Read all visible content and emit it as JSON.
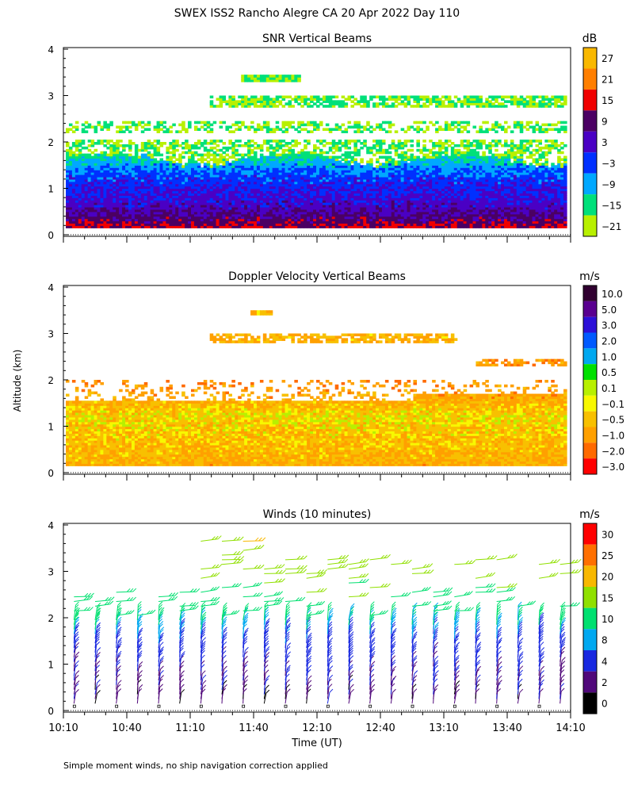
{
  "title": "SWEX ISS2 Rancho Alegre CA  20 Apr 2022 Day 110",
  "ylabel": "Altitude (km)",
  "xlabel": "Time (UT)",
  "footnote": "Simple moment winds, no ship navigation correction applied",
  "x_ticks": [
    "10:10",
    "10:40",
    "11:10",
    "11:40",
    "12:10",
    "12:40",
    "13:10",
    "13:40",
    "14:10"
  ],
  "y_ticks": [
    "0",
    "1",
    "2",
    "3",
    "4"
  ],
  "panels": {
    "snr": {
      "title": "SNR Vertical Beams",
      "unit": "dB",
      "colorbar": [
        {
          "label": "27",
          "color": "#f9b800"
        },
        {
          "label": "21",
          "color": "#ff7f00"
        },
        {
          "label": "15",
          "color": "#f00000"
        },
        {
          "label": "9",
          "color": "#4b0063"
        },
        {
          "label": "3",
          "color": "#4a00c4"
        },
        {
          "label": "−3",
          "color": "#0030ff"
        },
        {
          "label": "−9",
          "color": "#00a8ff"
        },
        {
          "label": "−15",
          "color": "#00e07a"
        },
        {
          "label": "−21",
          "color": "#b8f000"
        }
      ]
    },
    "doppler": {
      "title": "Doppler Velocity Vertical Beams",
      "unit": "m/s",
      "colorbar": [
        {
          "label": "10.0",
          "color": "#300030"
        },
        {
          "label": "5.0",
          "color": "#5a0090"
        },
        {
          "label": "3.0",
          "color": "#2c10d8"
        },
        {
          "label": "2.0",
          "color": "#005aff"
        },
        {
          "label": "1.0",
          "color": "#00a8f0"
        },
        {
          "label": "0.5",
          "color": "#00e000"
        },
        {
          "label": "0.1",
          "color": "#b8f000"
        },
        {
          "label": "−0.1",
          "color": "#f8f800"
        },
        {
          "label": "−0.5",
          "color": "#f8c000"
        },
        {
          "label": "−1.0",
          "color": "#ffa000"
        },
        {
          "label": "−2.0",
          "color": "#ff6a00"
        },
        {
          "label": "−3.0",
          "color": "#ff0000"
        }
      ]
    },
    "winds": {
      "title": "Winds (10 minutes)",
      "unit": "m/s",
      "colorbar": [
        {
          "label": "30",
          "color": "#ff0000"
        },
        {
          "label": "25",
          "color": "#ff7000"
        },
        {
          "label": "20",
          "color": "#f8b800"
        },
        {
          "label": "15",
          "color": "#90e000"
        },
        {
          "label": "10",
          "color": "#00e070"
        },
        {
          "label": "8",
          "color": "#00a8f0"
        },
        {
          "label": "4",
          "color": "#1828e0"
        },
        {
          "label": "2",
          "color": "#50087a"
        },
        {
          "label": "0",
          "color": "#000000"
        }
      ]
    }
  },
  "chart_data": [
    {
      "type": "heatmap",
      "title": "SNR Vertical Beams",
      "xlabel": "Time (UT)",
      "ylabel": "Altitude (km)",
      "x_range": [
        "10:10",
        "14:10"
      ],
      "ylim": [
        0,
        4
      ],
      "color_unit": "dB",
      "color_levels": [
        27,
        21,
        15,
        9,
        3,
        -3,
        -9,
        -15,
        -21
      ],
      "profile": [
        {
          "alt_km": 0.3,
          "snr_db": 9
        },
        {
          "alt_km": 0.6,
          "snr_db": 3
        },
        {
          "alt_km": 0.9,
          "snr_db": 0
        },
        {
          "alt_km": 1.2,
          "snr_db": -3
        },
        {
          "alt_km": 1.5,
          "snr_db": -9
        },
        {
          "alt_km": 1.8,
          "snr_db": -18
        },
        {
          "alt_km": 2.3,
          "snr_db": -21
        },
        {
          "alt_km": 2.8,
          "snr_db": -21
        },
        {
          "alt_km": 3.4,
          "snr_db": -21
        }
      ]
    },
    {
      "type": "heatmap",
      "title": "Doppler Velocity Vertical Beams",
      "xlabel": "Time (UT)",
      "ylabel": "Altitude (km)",
      "x_range": [
        "10:10",
        "14:10"
      ],
      "ylim": [
        0,
        4
      ],
      "color_unit": "m/s",
      "color_levels": [
        10.0,
        5.0,
        3.0,
        2.0,
        1.0,
        0.5,
        0.1,
        -0.1,
        -0.5,
        -1.0,
        -2.0,
        -3.0
      ],
      "profile": [
        {
          "alt_km": 0.3,
          "velocity_ms": -0.5
        },
        {
          "alt_km": 0.8,
          "velocity_ms": -0.3
        },
        {
          "alt_km": 1.2,
          "velocity_ms": -0.1
        },
        {
          "alt_km": 1.5,
          "velocity_ms": -0.5
        },
        {
          "alt_km": 2.0,
          "velocity_ms": -1.0
        },
        {
          "alt_km": 2.9,
          "velocity_ms": -0.5
        }
      ]
    },
    {
      "type": "scatter",
      "title": "Winds (10 minutes)",
      "xlabel": "Time (UT)",
      "ylabel": "Altitude (km)",
      "x_range": [
        "10:10",
        "14:10"
      ],
      "ylim": [
        0,
        4
      ],
      "interval_min": 10,
      "color_unit": "m/s",
      "color_levels": [
        30,
        25,
        20,
        15,
        10,
        8,
        4,
        2,
        0
      ],
      "speed_profile": [
        {
          "alt_km": 0.3,
          "speed_ms": 3
        },
        {
          "alt_km": 0.8,
          "speed_ms": 4
        },
        {
          "alt_km": 1.3,
          "speed_ms": 6
        },
        {
          "alt_km": 1.7,
          "speed_ms": 9
        },
        {
          "alt_km": 2.1,
          "speed_ms": 12
        },
        {
          "alt_km": 2.6,
          "speed_ms": 15
        },
        {
          "alt_km": 3.1,
          "speed_ms": 18
        },
        {
          "alt_km": 3.6,
          "speed_ms": 20
        }
      ]
    }
  ]
}
